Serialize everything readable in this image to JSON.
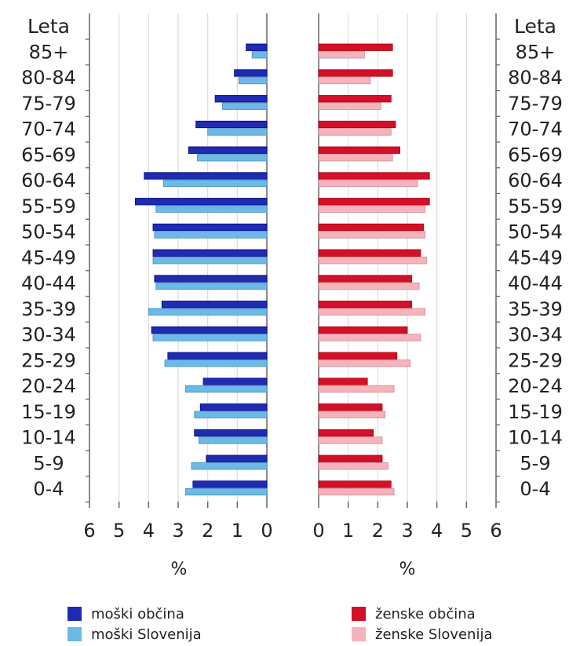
{
  "chart_data": {
    "type": "bar",
    "orientation": "horizontal",
    "layout": "population-pyramid",
    "age_axis_title": "Leta",
    "categories": [
      "85+",
      "80-84",
      "75-79",
      "70-74",
      "65-69",
      "60-64",
      "55-59",
      "50-54",
      "45-49",
      "40-44",
      "35-39",
      "30-34",
      "25-29",
      "20-24",
      "15-19",
      "10-14",
      "5-9",
      "0-4"
    ],
    "xlabel_left": "%",
    "xlabel_right": "%",
    "xlim": [
      0,
      6
    ],
    "xticks_left": [
      "6",
      "5",
      "4",
      "3",
      "2",
      "1",
      "0"
    ],
    "xticks_right": [
      "0",
      "1",
      "2",
      "3",
      "4",
      "5",
      "6"
    ],
    "grid": true,
    "legend_position": "bottom",
    "series": [
      {
        "name": "moški občina",
        "side": "left",
        "color": "#1f2bb0",
        "values": [
          0.7,
          1.1,
          1.75,
          2.4,
          2.65,
          4.15,
          4.45,
          3.85,
          3.85,
          3.8,
          3.55,
          3.9,
          3.35,
          2.15,
          2.25,
          2.45,
          2.05,
          2.5
        ]
      },
      {
        "name": "moški Slovenija",
        "side": "left",
        "color": "#6cb8e6",
        "values": [
          0.5,
          0.95,
          1.5,
          2.0,
          2.35,
          3.5,
          3.75,
          3.8,
          3.85,
          3.75,
          4.0,
          3.85,
          3.45,
          2.75,
          2.45,
          2.3,
          2.55,
          2.75
        ]
      },
      {
        "name": "ženske občina",
        "side": "right",
        "color": "#d40f2a",
        "values": [
          2.5,
          2.5,
          2.45,
          2.6,
          2.75,
          3.75,
          3.75,
          3.55,
          3.45,
          3.15,
          3.15,
          3.0,
          2.65,
          1.65,
          2.15,
          1.85,
          2.15,
          2.45
        ]
      },
      {
        "name": "ženske Slovenija",
        "side": "right",
        "color": "#f7b3bc",
        "values": [
          1.55,
          1.75,
          2.1,
          2.45,
          2.5,
          3.35,
          3.6,
          3.6,
          3.65,
          3.4,
          3.6,
          3.45,
          3.1,
          2.55,
          2.25,
          2.15,
          2.35,
          2.55
        ]
      }
    ]
  }
}
